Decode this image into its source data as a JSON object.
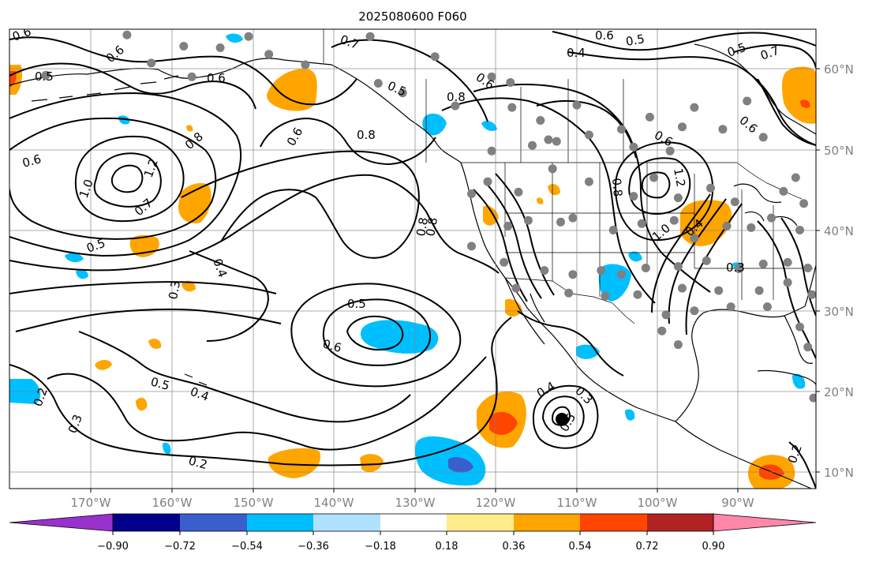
{
  "title": "2025080600 F060",
  "longitude_ticks": [
    "170°W",
    "160°W",
    "150°W",
    "140°W",
    "130°W",
    "120°W",
    "110°W",
    "100°W",
    "90°W"
  ],
  "latitude_ticks": [
    "60°N",
    "50°N",
    "40°N",
    "30°N",
    "20°N",
    "10°N"
  ],
  "colorbar": {
    "colors": [
      "#9932cc",
      "#00008b",
      "#3a5fcd",
      "#00bfff",
      "#b0e2ff",
      "#ffffff",
      "#ffec8b",
      "#ffa500",
      "#ff4500",
      "#b22222",
      "#ff88aa"
    ],
    "tick_labels": [
      "−0.90",
      "−0.72",
      "−0.54",
      "−0.36",
      "−0.18",
      "0.18",
      "0.36",
      "0.54",
      "0.72",
      "0.90"
    ]
  },
  "contour_labels": [
    "0.6",
    "0.5",
    "0.6",
    "0.6",
    "0.7",
    "0.5",
    "0.6",
    "0.4",
    "0.6",
    "0.5",
    "0.6",
    "0.5",
    "0.7",
    "0.8",
    "0.8",
    "0.6",
    "0.6",
    "0.6",
    "1.0",
    "1.2",
    "0.8",
    "0.7",
    "0.8",
    "1.2",
    "0.8",
    "1.0",
    "0.4",
    "0.5",
    "0.3",
    "0.4",
    "0.8",
    "0.5",
    "0.6",
    "0.3",
    "0.5",
    "0.4",
    "0.2",
    "0.3",
    "0.2",
    "0.4",
    "0.3",
    "0.5",
    "0.2"
  ],
  "chart_data": {
    "type": "map",
    "title": "2025080600 F060",
    "lon_range": [
      -180,
      -80
    ],
    "lat_range": [
      8,
      65
    ],
    "colorbar_levels": [
      -0.9,
      -0.72,
      -0.54,
      -0.36,
      -0.18,
      0.18,
      0.36,
      0.54,
      0.72,
      0.9
    ],
    "contour_values_shown": [
      0.2,
      0.3,
      0.4,
      0.5,
      0.6,
      0.7,
      0.8,
      1.0,
      1.2
    ],
    "stations": [
      {
        "lon": -165.5,
        "lat": 64.2
      },
      {
        "lon": -158.5,
        "lat": 62.8
      },
      {
        "lon": -150.5,
        "lat": 64.0
      },
      {
        "lon": -148.0,
        "lat": 61.8
      },
      {
        "lon": -154.0,
        "lat": 62.6
      },
      {
        "lon": -157.5,
        "lat": 59.0
      },
      {
        "lon": -162.5,
        "lat": 60.7
      },
      {
        "lon": -175.5,
        "lat": 59.2
      },
      {
        "lon": -143.5,
        "lat": 60.5
      },
      {
        "lon": -135.5,
        "lat": 64.0
      },
      {
        "lon": -134.5,
        "lat": 58.2
      },
      {
        "lon": -131.5,
        "lat": 57.0
      },
      {
        "lon": -127.5,
        "lat": 61.5
      },
      {
        "lon": -120.5,
        "lat": 59.0
      },
      {
        "lon": -118.2,
        "lat": 58.3
      },
      {
        "lon": -125.0,
        "lat": 55.4
      },
      {
        "lon": -118.0,
        "lat": 55.2
      },
      {
        "lon": -114.5,
        "lat": 53.6
      },
      {
        "lon": -113.5,
        "lat": 51.2
      },
      {
        "lon": -110.0,
        "lat": 55.5
      },
      {
        "lon": -104.5,
        "lat": 52.5
      },
      {
        "lon": -101.0,
        "lat": 54.0
      },
      {
        "lon": -97.0,
        "lat": 52.8
      },
      {
        "lon": -95.5,
        "lat": 55.2
      },
      {
        "lon": -92.0,
        "lat": 52.5
      },
      {
        "lon": -87.0,
        "lat": 51.5
      },
      {
        "lon": -89.0,
        "lat": 56.0
      },
      {
        "lon": -98.5,
        "lat": 49.8
      },
      {
        "lon": -103.0,
        "lat": 50.3
      },
      {
        "lon": -108.5,
        "lat": 51.8
      },
      {
        "lon": -112.5,
        "lat": 51.0
      },
      {
        "lon": -115.5,
        "lat": 50.5
      },
      {
        "lon": -120.5,
        "lat": 49.8
      },
      {
        "lon": -121.0,
        "lat": 46.0
      },
      {
        "lon": -123.0,
        "lat": 44.5
      },
      {
        "lon": -117.2,
        "lat": 44.7
      },
      {
        "lon": -113.0,
        "lat": 47.6
      },
      {
        "lon": -108.5,
        "lat": 46.0
      },
      {
        "lon": -103.0,
        "lat": 44.2
      },
      {
        "lon": -100.5,
        "lat": 46.5
      },
      {
        "lon": -97.5,
        "lat": 44.0
      },
      {
        "lon": -93.5,
        "lat": 45.2
      },
      {
        "lon": -90.5,
        "lat": 43.5
      },
      {
        "lon": -118.5,
        "lat": 40.5
      },
      {
        "lon": -116.0,
        "lat": 41.2
      },
      {
        "lon": -112.0,
        "lat": 41.0
      },
      {
        "lon": -110.5,
        "lat": 41.5
      },
      {
        "lon": -105.5,
        "lat": 40.0
      },
      {
        "lon": -102.0,
        "lat": 40.8
      },
      {
        "lon": -98.0,
        "lat": 41.2
      },
      {
        "lon": -95.5,
        "lat": 39.0
      },
      {
        "lon": -91.5,
        "lat": 40.5
      },
      {
        "lon": -88.5,
        "lat": 40.3
      },
      {
        "lon": -86.0,
        "lat": 41.5
      },
      {
        "lon": -82.5,
        "lat": 40.0
      },
      {
        "lon": -82.0,
        "lat": 43.3
      },
      {
        "lon": -84.5,
        "lat": 44.8
      },
      {
        "lon": -83.0,
        "lat": 46.5
      },
      {
        "lon": -123.0,
        "lat": 38.0
      },
      {
        "lon": -119.0,
        "lat": 36.0
      },
      {
        "lon": -114.0,
        "lat": 35.0
      },
      {
        "lon": -110.5,
        "lat": 34.5
      },
      {
        "lon": -107.0,
        "lat": 35.0
      },
      {
        "lon": -104.5,
        "lat": 34.5
      },
      {
        "lon": -101.5,
        "lat": 35.3
      },
      {
        "lon": -97.5,
        "lat": 35.5
      },
      {
        "lon": -94.0,
        "lat": 36.2
      },
      {
        "lon": -90.0,
        "lat": 35.2
      },
      {
        "lon": -87.0,
        "lat": 35.8
      },
      {
        "lon": -84.0,
        "lat": 36.0
      },
      {
        "lon": -81.5,
        "lat": 35.3
      },
      {
        "lon": -117.5,
        "lat": 32.8
      },
      {
        "lon": -111.0,
        "lat": 32.2
      },
      {
        "lon": -106.5,
        "lat": 31.8
      },
      {
        "lon": -102.5,
        "lat": 32.0
      },
      {
        "lon": -97.0,
        "lat": 32.8
      },
      {
        "lon": -92.5,
        "lat": 32.5
      },
      {
        "lon": -87.5,
        "lat": 32.5
      },
      {
        "lon": -84.0,
        "lat": 33.5
      },
      {
        "lon": -81.0,
        "lat": 32.0
      },
      {
        "lon": -99.0,
        "lat": 29.5
      },
      {
        "lon": -95.5,
        "lat": 30.0
      },
      {
        "lon": -91.0,
        "lat": 30.5
      },
      {
        "lon": -86.5,
        "lat": 30.5
      },
      {
        "lon": -82.5,
        "lat": 28.0
      },
      {
        "lon": -99.5,
        "lat": 27.5
      },
      {
        "lon": -97.5,
        "lat": 25.8
      },
      {
        "lon": -81.5,
        "lat": 25.5
      },
      {
        "lon": -80.8,
        "lat": 19.2
      },
      {
        "lon": -112.0,
        "lat": 16.7
      }
    ]
  }
}
